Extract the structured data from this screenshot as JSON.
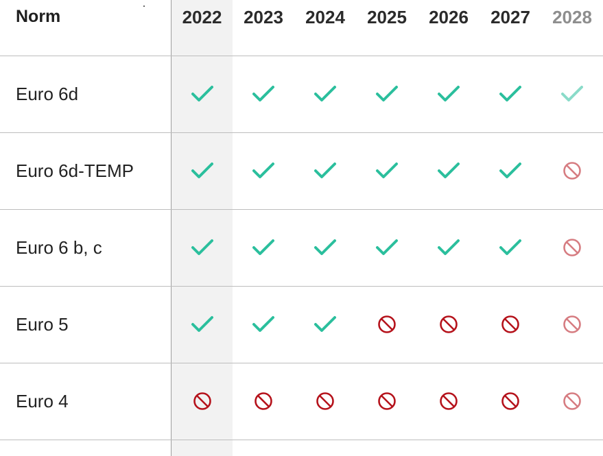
{
  "table": {
    "header": {
      "norm_label": "Norm",
      "years": [
        "2022",
        "2023",
        "2024",
        "2025",
        "2026",
        "2027",
        "2028"
      ]
    },
    "rows": [
      {
        "norm": "Euro 6d",
        "status": [
          "allowed",
          "allowed",
          "allowed",
          "allowed",
          "allowed",
          "allowed",
          "allowed"
        ]
      },
      {
        "norm": "Euro 6d-TEMP",
        "status": [
          "allowed",
          "allowed",
          "allowed",
          "allowed",
          "allowed",
          "allowed",
          "banned"
        ]
      },
      {
        "norm": "Euro 6 b, c",
        "status": [
          "allowed",
          "allowed",
          "allowed",
          "allowed",
          "allowed",
          "allowed",
          "banned"
        ]
      },
      {
        "norm": "Euro 5",
        "status": [
          "allowed",
          "allowed",
          "allowed",
          "banned",
          "banned",
          "banned",
          "banned"
        ]
      },
      {
        "norm": "Euro 4",
        "status": [
          "banned",
          "banned",
          "banned",
          "banned",
          "banned",
          "banned",
          "banned"
        ]
      }
    ]
  },
  "icons": {
    "allowed": "check-icon",
    "banned": "no-entry-icon"
  },
  "colors": {
    "allowed": "#2bbf9d",
    "banned": "#b5121b",
    "highlight_column": "#f2f2f2"
  }
}
